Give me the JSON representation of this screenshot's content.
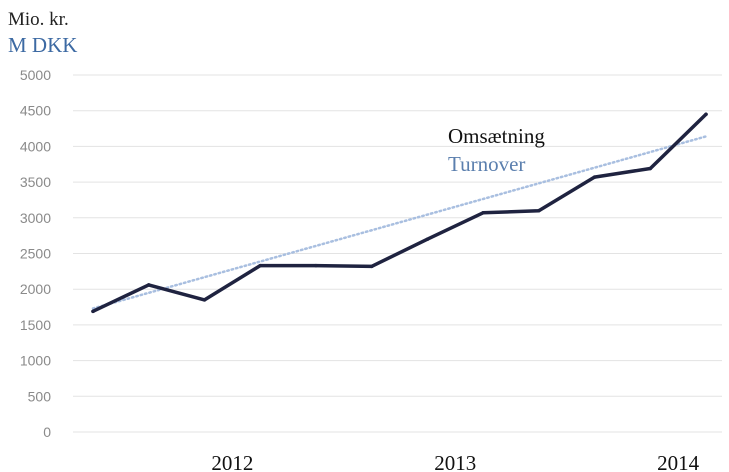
{
  "chart_data": {
    "type": "line",
    "unit_label_primary": "Mio. kr.",
    "unit_label_secondary": "M DKK",
    "legend": {
      "series_name_primary": "Omsætning",
      "series_name_secondary": "Turnover",
      "placement": "upper-right"
    },
    "ylim": [
      0,
      5000
    ],
    "y_ticks": [
      0,
      500,
      1000,
      1500,
      2000,
      2500,
      3000,
      3500,
      4000,
      4500,
      5000
    ],
    "grid": true,
    "x_labels": [
      {
        "label": "2012",
        "x": 2.5
      },
      {
        "label": "2013",
        "x": 6.5
      },
      {
        "label": "2014",
        "x": 10.5
      }
    ],
    "series": [
      {
        "name": "Omsætning / Turnover",
        "color": "#1f2340",
        "x": [
          0,
          1,
          2,
          3,
          4,
          5,
          6,
          7,
          8,
          9,
          10,
          11
        ],
        "values": [
          1690,
          2060,
          1850,
          2330,
          2330,
          2320,
          2700,
          3070,
          3100,
          3570,
          3690,
          4450
        ]
      }
    ],
    "trendline": {
      "color": "#a9bfe0",
      "style": "dotted",
      "x": [
        0,
        11
      ],
      "values": [
        1730,
        4140
      ]
    },
    "colors": {
      "unit_secondary": "#3d6aa3",
      "legend_secondary": "#5b7fae",
      "axis_tick_text": "#8a8a8a",
      "grid": "#e3e3e3"
    }
  }
}
